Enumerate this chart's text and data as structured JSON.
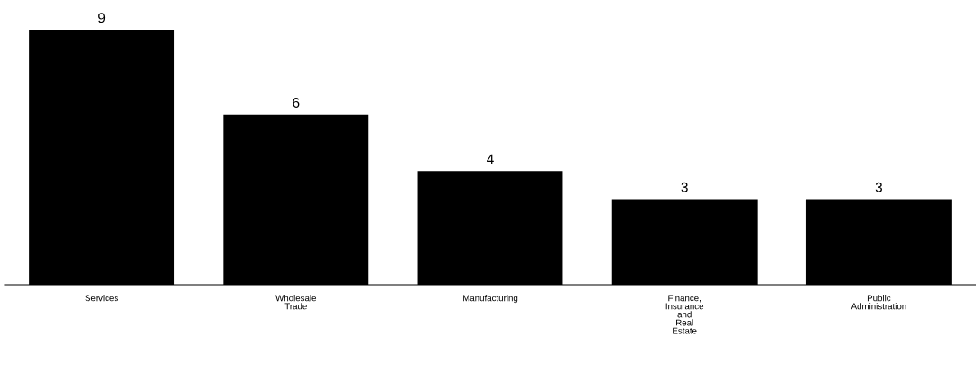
{
  "chart_data": {
    "type": "bar",
    "categories": [
      "Services",
      "Wholesale\nTrade",
      "Manufacturing",
      "Finance,\nInsurance\nand\nReal\nEstate",
      "Public\nAdministration"
    ],
    "values": [
      9,
      6,
      4,
      3,
      3
    ],
    "color": "#000000",
    "data_labels": true,
    "grid": false,
    "legend": false
  }
}
